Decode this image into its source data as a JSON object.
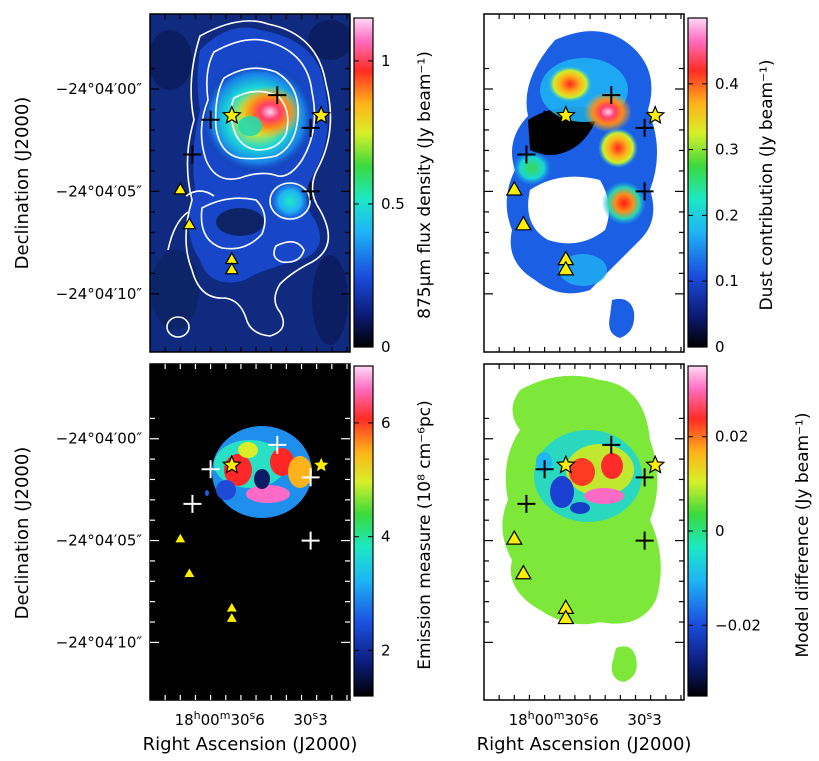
{
  "figure": {
    "ra_axis_label": "Right Ascension (J2000)",
    "dec_axis_label": "Declination (J2000)",
    "dec_ticks": [
      "−24°04′00″",
      "−24°04′05″",
      "−24°04′10″"
    ],
    "ra_ticks": [
      {
        "h": "18",
        "m": "00",
        "s": "30",
        "f": "6"
      },
      {
        "h": "",
        "m": "",
        "s": "30",
        "f": "3"
      }
    ],
    "panels": [
      {
        "id": "a",
        "colorbar_label": "875μm flux density (Jy beam⁻¹)",
        "colorbar_ticks": [
          "0",
          "0.5",
          "1"
        ],
        "range": [
          0,
          1.15
        ]
      },
      {
        "id": "b",
        "colorbar_label": "Dust contribution (Jy beam⁻¹)",
        "colorbar_ticks": [
          "0",
          "0.1",
          "0.2",
          "0.3",
          "0.4"
        ],
        "range": [
          0,
          0.5
        ]
      },
      {
        "id": "c",
        "colorbar_label": "Emission measure (10⁸ cm⁻⁶pc)",
        "colorbar_ticks": [
          "2",
          "4",
          "6"
        ],
        "range": [
          1.2,
          7
        ]
      },
      {
        "id": "d",
        "colorbar_label": "Model difference (Jy beam⁻¹)",
        "colorbar_ticks": [
          "−0.02",
          "0",
          "0.02"
        ],
        "range": [
          -0.035,
          0.035
        ]
      }
    ],
    "colors": {
      "frame": "#000000",
      "contour": "#ffffff",
      "marker_fill": "#ffee00",
      "marker_stroke": "#000000"
    }
  },
  "chart_data": {
    "type": "heatmap",
    "markers": {
      "crosses": [
        {
          "ra_s": 30.63,
          "dec_s": 1.5
        },
        {
          "ra_s": 30.41,
          "dec_s": 0.3
        },
        {
          "ra_s": 30.3,
          "dec_s": 1.9
        },
        {
          "ra_s": 30.69,
          "dec_s": 3.2
        },
        {
          "ra_s": 30.3,
          "dec_s": 5.0
        }
      ],
      "stars": [
        {
          "ra_s": 30.56,
          "dec_s": 1.3
        },
        {
          "ra_s": 30.265,
          "dec_s": 1.3
        }
      ],
      "triangles": [
        {
          "ra_s": 30.73,
          "dec_s": 4.9
        },
        {
          "ra_s": 30.7,
          "dec_s": 6.6
        },
        {
          "ra_s": 30.56,
          "dec_s": 8.3
        },
        {
          "ra_s": 30.56,
          "dec_s": 8.8
        }
      ]
    }
  }
}
